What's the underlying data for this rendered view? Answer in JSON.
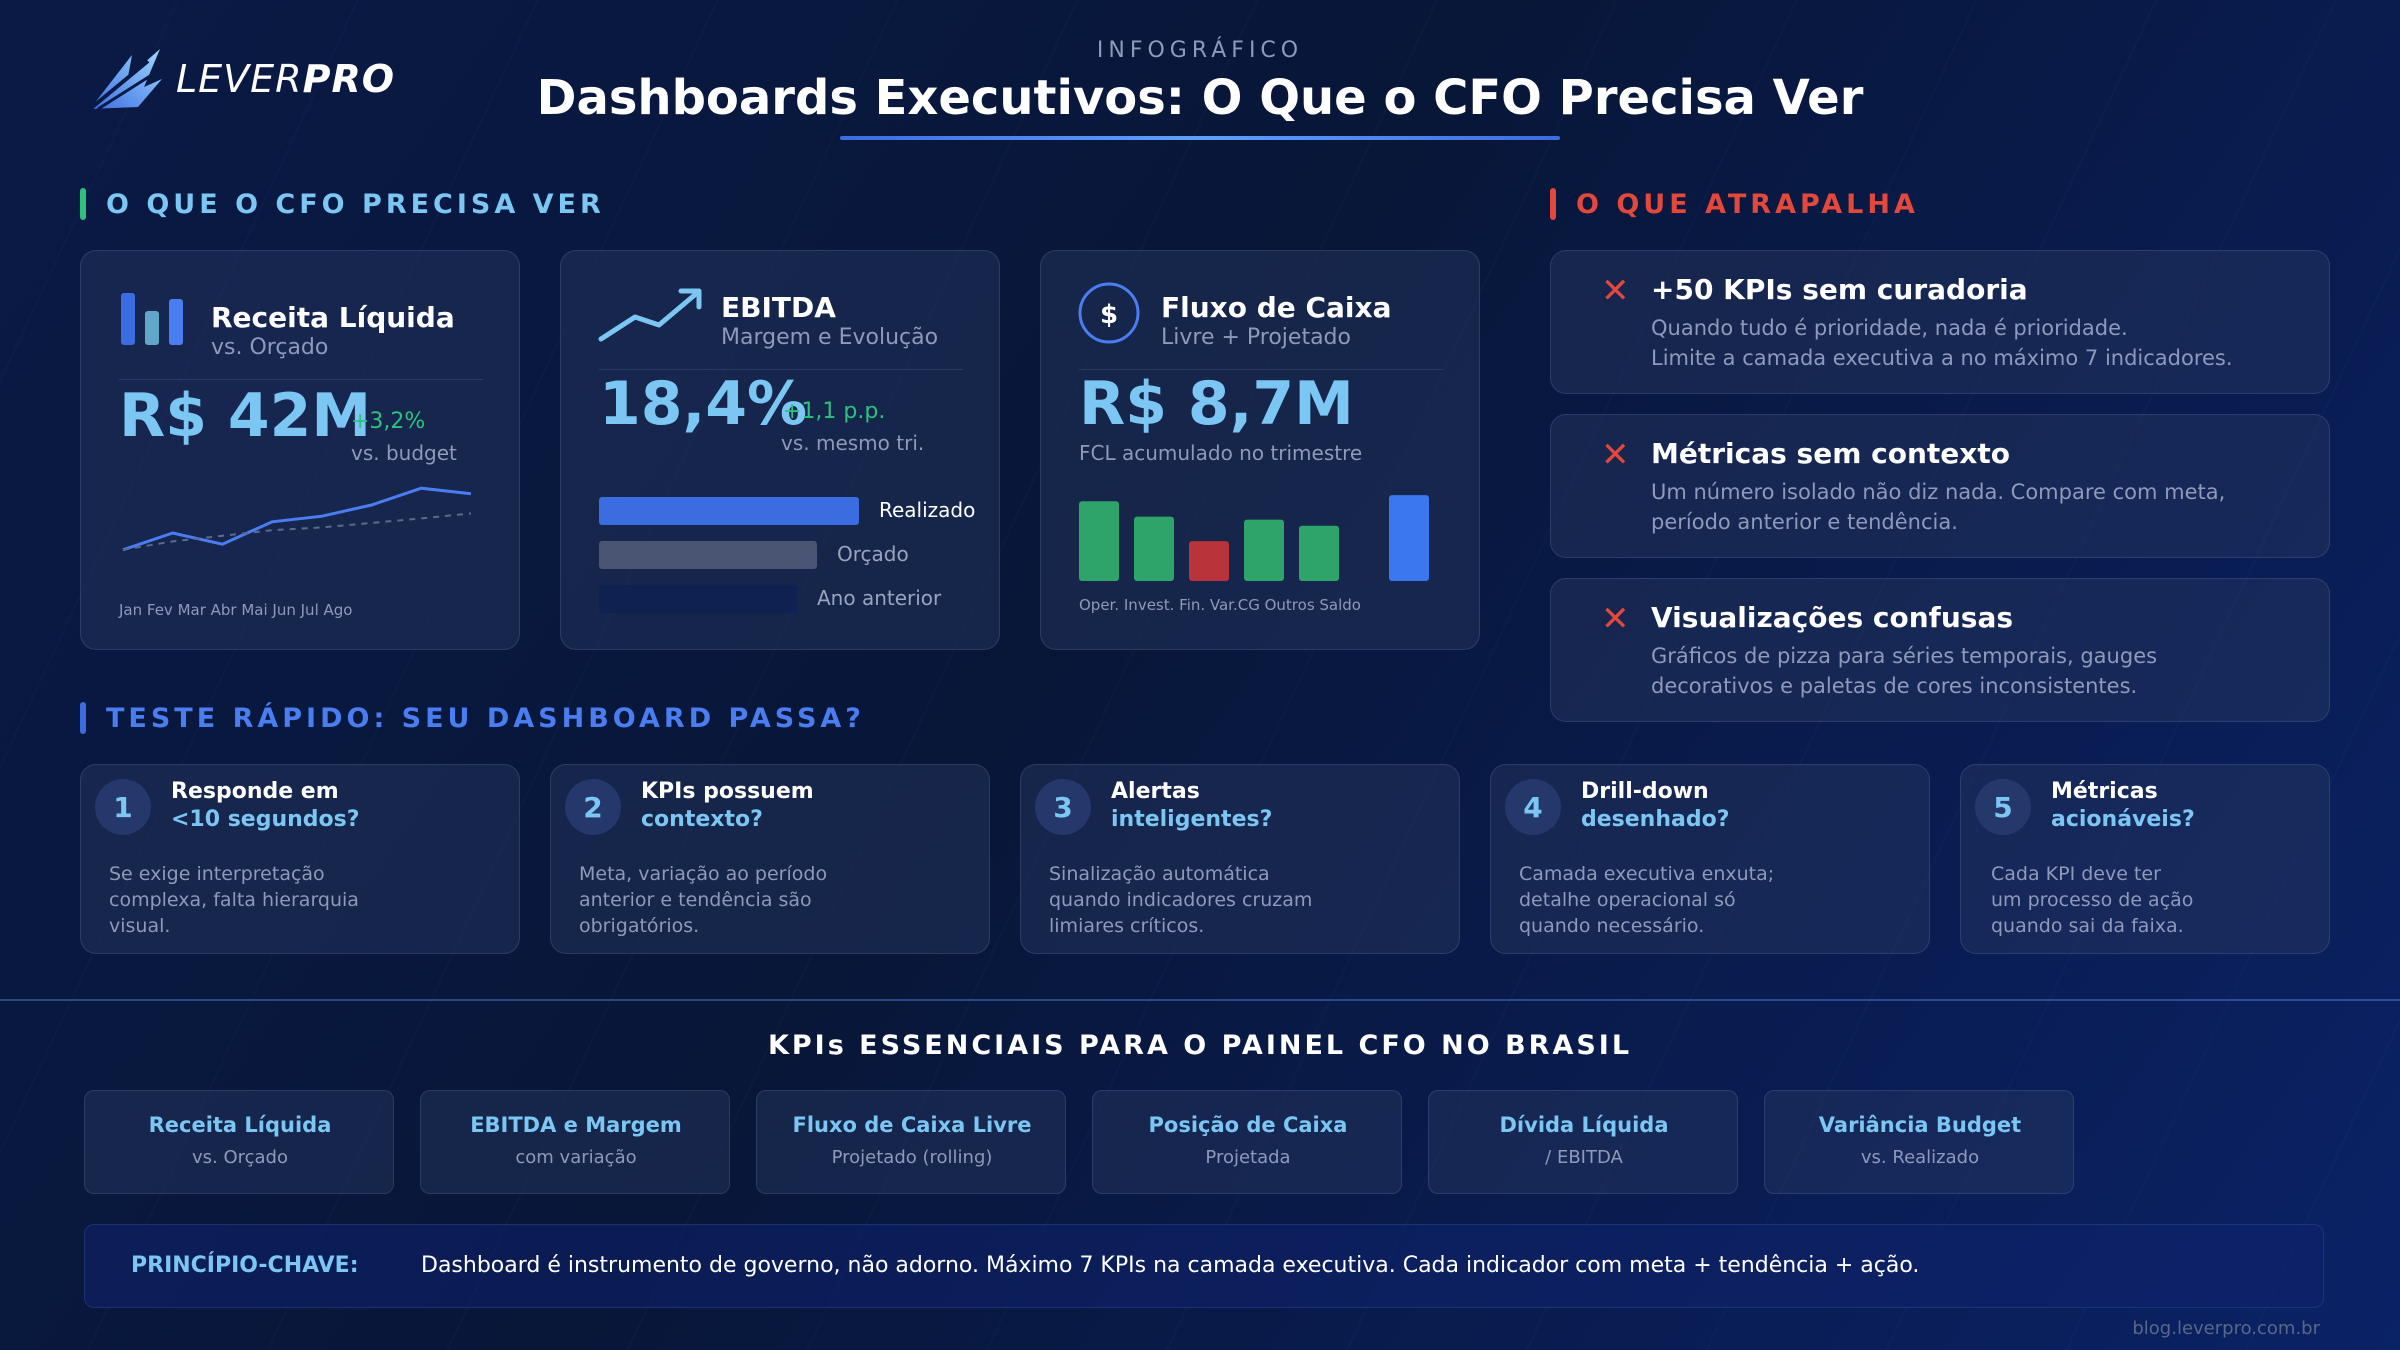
{
  "header": {
    "logo_text": "LEVER",
    "logo_text_bold": "PRO",
    "eyebrow": "INFOGRÁFICO",
    "title": "Dashboards Executivos: O Que o CFO Precisa Ver"
  },
  "section_need": {
    "label": "O QUE O CFO PRECISA VER",
    "accent_color": "#2ec27e",
    "label_color": "#7cc6f4"
  },
  "cards": {
    "revenue": {
      "title": "Receita Líquida",
      "subtitle": "vs. Orçado",
      "value": "R$ 42M",
      "delta": "+3,2%",
      "delta_note": "vs. budget",
      "months": "Jan Fev Mar Abr Mai Jun Jul Ago",
      "icon": "bar-chart-icon"
    },
    "ebitda": {
      "title": "EBITDA",
      "subtitle": "Margem e Evolução",
      "value": "18,4%",
      "delta": "+1,1 p.p.",
      "delta_note": "vs. mesmo tri.",
      "bars": [
        {
          "label": "Realizado",
          "value": 100,
          "color": "#3b6de0",
          "label_color": "#ffffff"
        },
        {
          "label": "Orçado",
          "value": 84,
          "color": "#4a5573",
          "label_color": "#9aa4c0"
        },
        {
          "label": "Ano anterior",
          "value": 76,
          "color": "#0f2150",
          "label_color": "#9aa4c0"
        }
      ],
      "icon": "trend-up-icon"
    },
    "cashflow": {
      "title": "Fluxo de Caixa",
      "subtitle": "Livre + Projetado",
      "value": "R$ 8,7M",
      "note": "FCL acumulado no trimestre",
      "categories": "Oper. Invest. Fin. Var.CG Outros Saldo",
      "icon": "dollar-circle-icon"
    }
  },
  "chart_data": [
    {
      "type": "line",
      "title": "Receita Líquida vs. Orçado",
      "categories": [
        "Jan",
        "Fev",
        "Mar",
        "Abr",
        "Mai",
        "Jun",
        "Jul",
        "Ago"
      ],
      "series": [
        {
          "name": "Realizado",
          "values": [
            30,
            33,
            31,
            35,
            36,
            38,
            41,
            40
          ],
          "color": "#4a7df0"
        },
        {
          "name": "Orçado",
          "values": [
            30,
            31.5,
            32.5,
            33.5,
            34,
            34.8,
            35.6,
            36.5
          ],
          "color": "#5c6a8c"
        }
      ],
      "ylim": [
        28,
        43
      ]
    },
    {
      "type": "bar",
      "title": "Fluxo de Caixa",
      "categories": [
        "Oper.",
        "Invest.",
        "Fin.",
        "Var.CG",
        "Outros",
        "Saldo"
      ],
      "values": [
        5.2,
        4.2,
        2.6,
        4.0,
        3.6,
        5.6
      ],
      "colors": [
        "#2ea36a",
        "#2ea36a",
        "#b8333a",
        "#2ea36a",
        "#2ea36a",
        "#3b78f0"
      ],
      "ylim": [
        0,
        6
      ]
    }
  ],
  "section_issues": {
    "label": "O QUE ATRAPALHA",
    "accent_color": "#e2483b",
    "items": [
      {
        "title": "+50 KPIs sem curadoria",
        "line1": "Quando tudo é prioridade, nada é prioridade.",
        "line2": "Limite a camada executiva a no máximo 7 indicadores."
      },
      {
        "title": "Métricas sem contexto",
        "line1": "Um número isolado não diz nada. Compare com meta,",
        "line2": "período anterior e tendência."
      },
      {
        "title": "Visualizações confusas",
        "line1": "Gráficos de pizza para séries temporais, gauges",
        "line2": "decorativos e paletas de cores inconsistentes."
      }
    ]
  },
  "section_test": {
    "label": "TESTE RÁPIDO: SEU DASHBOARD PASSA?",
    "accent_color": "#3b6de0",
    "label_color": "#4a7df0",
    "items": [
      {
        "num": "1",
        "q1": "Responde em",
        "q2": "<10 segundos?",
        "d1": "Se exige interpretação",
        "d2": "complexa, falta hierarquia",
        "d3": "visual."
      },
      {
        "num": "2",
        "q1": "KPIs possuem",
        "q2": "contexto?",
        "d1": "Meta, variação ao período",
        "d2": "anterior e tendência são",
        "d3": "obrigatórios."
      },
      {
        "num": "3",
        "q1": "Alertas",
        "q2": "inteligentes?",
        "d1": "Sinalização automática",
        "d2": "quando indicadores cruzam",
        "d3": "limiares críticos."
      },
      {
        "num": "4",
        "q1": "Drill-down",
        "q2": "desenhado?",
        "d1": "Camada executiva enxuta;",
        "d2": "detalhe operacional só",
        "d3": "quando necessário."
      },
      {
        "num": "5",
        "q1": "Métricas",
        "q2": "acionáveis?",
        "d1": "Cada KPI deve ter",
        "d2": "um processo de ação",
        "d3": "quando sai da faixa."
      }
    ]
  },
  "kpis": {
    "heading": "KPIs ESSENCIAIS PARA O PAINEL CFO NO BRASIL",
    "items": [
      {
        "title": "Receita Líquida",
        "sub": "vs. Orçado"
      },
      {
        "title": "EBITDA e Margem",
        "sub": "com variação"
      },
      {
        "title": "Fluxo de Caixa Livre",
        "sub": "Projetado (rolling)"
      },
      {
        "title": "Posição de Caixa",
        "sub": "Projetada"
      },
      {
        "title": "Dívida Líquida",
        "sub": "/ EBITDA"
      },
      {
        "title": "Variância Budget",
        "sub": "vs. Realizado"
      }
    ]
  },
  "principle": {
    "label": "PRINCÍPIO-CHAVE:",
    "text": "Dashboard é instrumento de governo, não adorno. Máximo 7 KPIs na camada executiva. Cada indicador com meta + tendência + ação."
  },
  "footer": {
    "url": "blog.leverpro.com.br"
  }
}
